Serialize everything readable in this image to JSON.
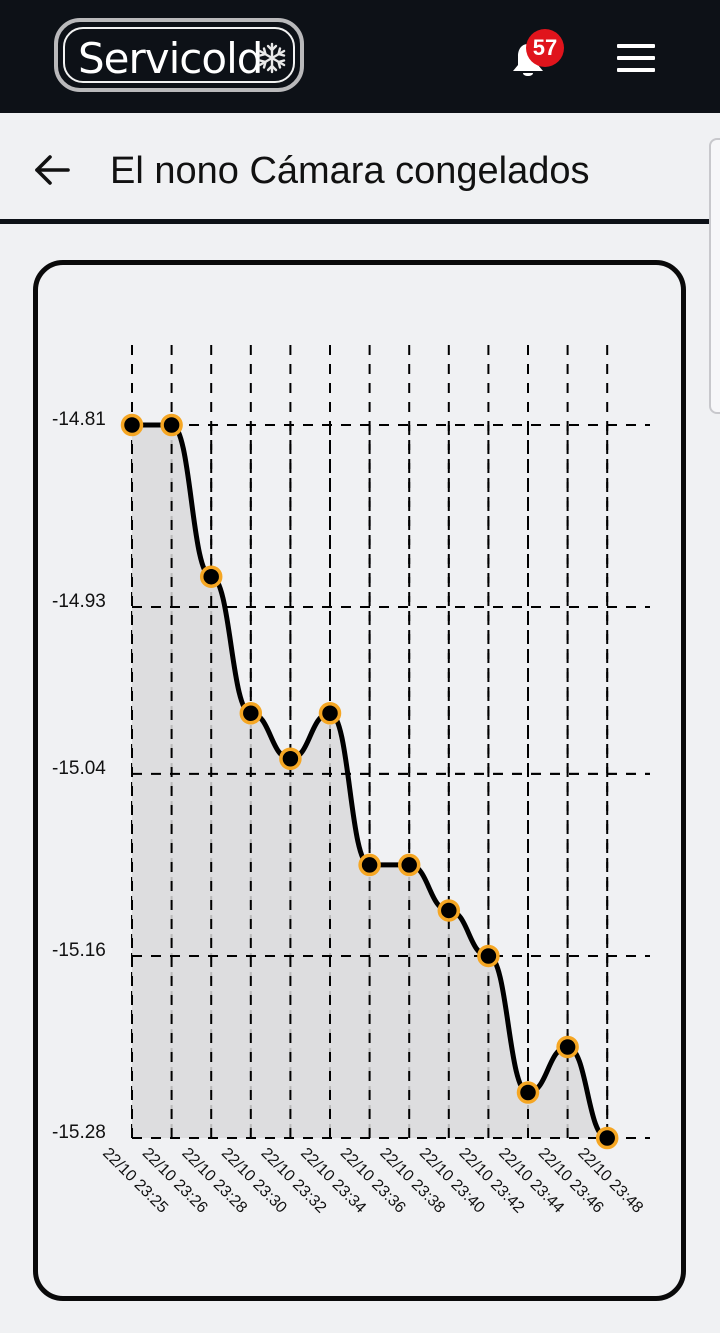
{
  "app": {
    "brand": "Servicold",
    "notification_count": "57"
  },
  "page": {
    "title": "El nono Cámara congelados"
  },
  "icons": {
    "logo": "snowflake-icon",
    "bell": "bell-icon",
    "menu": "hamburger-menu-icon",
    "back": "arrow-left-icon"
  },
  "colors": {
    "topbar": "#0d1117",
    "badge": "#e0141c",
    "line": "#000000",
    "marker_outline": "#f5a623",
    "area_fill": "#d9d9db"
  },
  "chart_data": {
    "type": "line",
    "categories": [
      "22/10 23:25",
      "22/10 23:26",
      "22/10 23:28",
      "22/10 23:30",
      "22/10 23:32",
      "22/10 23:34",
      "22/10 23:36",
      "22/10 23:38",
      "22/10 23:40",
      "22/10 23:42",
      "22/10 23:44",
      "22/10 23:46",
      "22/10 23:48"
    ],
    "series": [
      {
        "values": [
          -14.81,
          -14.81,
          -14.91,
          -15.0,
          -15.03,
          -15.0,
          -15.1,
          -15.1,
          -15.13,
          -15.16,
          -15.25,
          -15.22,
          -15.28
        ]
      }
    ],
    "yticks": [
      "-14.81",
      "-14.93",
      "-15.04",
      "-15.16",
      "-15.28"
    ],
    "ylim": [
      -15.28,
      -14.81
    ],
    "grid": "dashed",
    "area": true,
    "smooth": true
  }
}
